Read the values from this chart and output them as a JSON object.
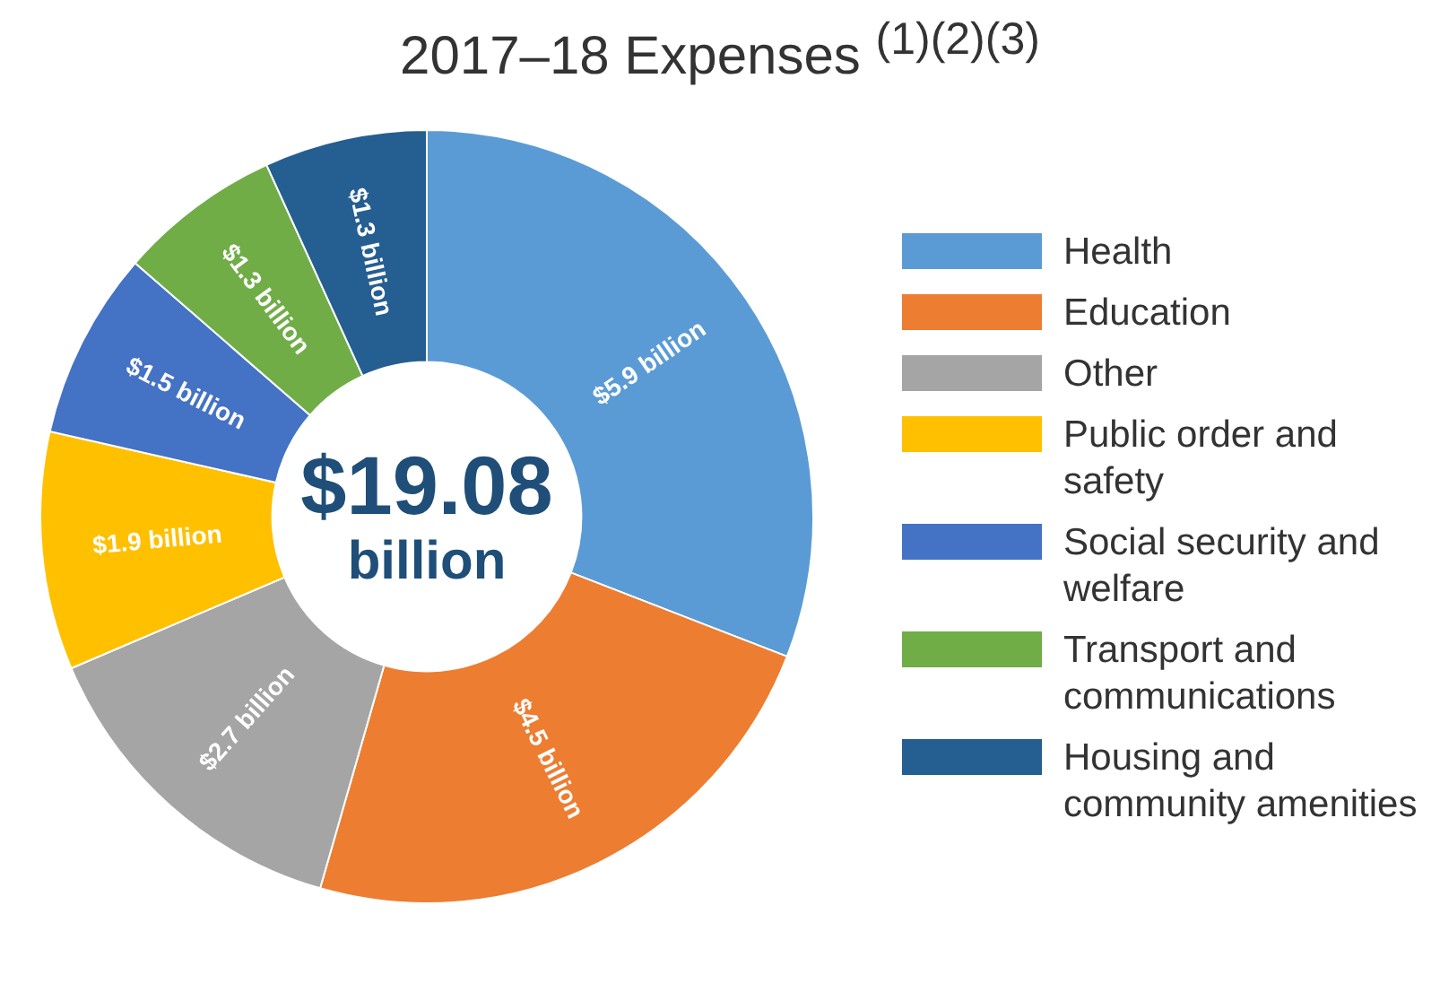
{
  "chart_data": {
    "type": "donut",
    "title": "2017–18 Expenses $^{(1)(2)(3)}$",
    "categories": [
      "Health",
      "Education",
      "Other",
      "Public order and safety",
      "Social security and welfare",
      "Transport and communications",
      "Housing and community amenities"
    ],
    "values": [
      5.9,
      4.5,
      2.7,
      1.9,
      1.5,
      1.3,
      1.3
    ],
    "colors": [
      "#5b9bd5",
      "#ed7d31",
      "#a5a5a5",
      "#ffc000",
      "#4472c4",
      "#70ad47",
      "#255e91"
    ],
    "value_labels": [
      "$5.9 billion",
      "$4.5 billion",
      "$2.7 billion",
      "$1.9 billion",
      "$1.5 billion",
      "$1.3 billion",
      "$1.3 billion"
    ],
    "annotations": [
      "$19.08 billion"
    ],
    "legend": "right"
  }
}
